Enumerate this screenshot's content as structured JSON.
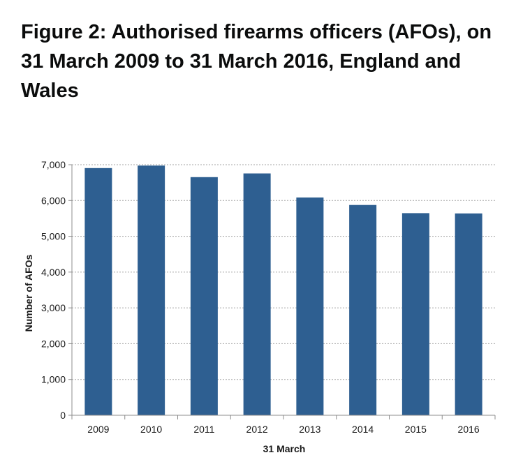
{
  "figure": {
    "title": "Figure 2: Authorised firearms officers (AFOs), on 31 March 2009 to 31 March 2016, England and Wales"
  },
  "chart_data": {
    "type": "bar",
    "title": "Figure 2: Authorised firearms officers (AFOs), on 31 March 2009 to 31 March 2016, England and Wales",
    "categories": [
      "2009",
      "2010",
      "2011",
      "2012",
      "2013",
      "2014",
      "2015",
      "2016"
    ],
    "values": [
      6906,
      6976,
      6653,
      6756,
      6084,
      5875,
      5647,
      5639
    ],
    "xlabel": "31 March",
    "ylabel": "Number of AFOs",
    "ylim": [
      0,
      7000
    ],
    "yticks": [
      "0",
      "1,000",
      "2,000",
      "3,000",
      "4,000",
      "5,000",
      "6,000",
      "7,000"
    ],
    "ytick_values": [
      0,
      1000,
      2000,
      3000,
      4000,
      5000,
      6000,
      7000
    ],
    "grid": true,
    "legend": "none",
    "colors": {
      "bar": "#2e5f91",
      "grid": "#a6a6a6",
      "axis": "#8c8c8c"
    }
  }
}
